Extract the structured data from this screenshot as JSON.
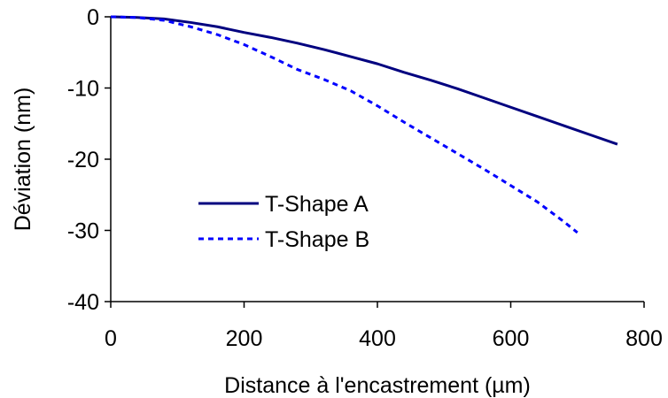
{
  "chart_data": {
    "type": "line",
    "title": "",
    "xlabel": "Distance à l'encastrement (µm)",
    "ylabel": "Déviation (nm)",
    "xlim": [
      0,
      800
    ],
    "ylim": [
      -40,
      0
    ],
    "xticks": [
      0,
      200,
      400,
      600,
      800
    ],
    "yticks": [
      0,
      -10,
      -20,
      -30,
      -40
    ],
    "xtick_labels": [
      "0",
      "200",
      "400",
      "600",
      "800"
    ],
    "ytick_labels": [
      "0",
      "-10",
      "-20",
      "-30",
      "-40"
    ],
    "grid": false,
    "legend_position": "center-left",
    "series": [
      {
        "name": "T-Shape A",
        "color": "#00007f",
        "style": "solid",
        "x": [
          0,
          40,
          80,
          120,
          160,
          200,
          240,
          280,
          320,
          360,
          400,
          440,
          480,
          520,
          560,
          600,
          640,
          680,
          720,
          760
        ],
        "y": [
          0,
          -0.1,
          -0.3,
          -0.8,
          -1.4,
          -2.2,
          -2.9,
          -3.7,
          -4.6,
          -5.6,
          -6.6,
          -7.8,
          -8.9,
          -10.1,
          -11.4,
          -12.7,
          -14.0,
          -15.3,
          -16.6,
          -17.9
        ]
      },
      {
        "name": "T-Shape B",
        "color": "#0000ff",
        "style": "dotted",
        "x": [
          0,
          40,
          80,
          120,
          160,
          200,
          240,
          280,
          320,
          360,
          400,
          440,
          480,
          520,
          560,
          600,
          640,
          680,
          700
        ],
        "y": [
          0,
          -0.1,
          -0.5,
          -1.4,
          -2.5,
          -3.9,
          -5.6,
          -7.4,
          -8.8,
          -10.4,
          -12.5,
          -14.8,
          -17.0,
          -19.2,
          -21.4,
          -23.7,
          -26.0,
          -28.8,
          -30.3
        ]
      }
    ]
  }
}
